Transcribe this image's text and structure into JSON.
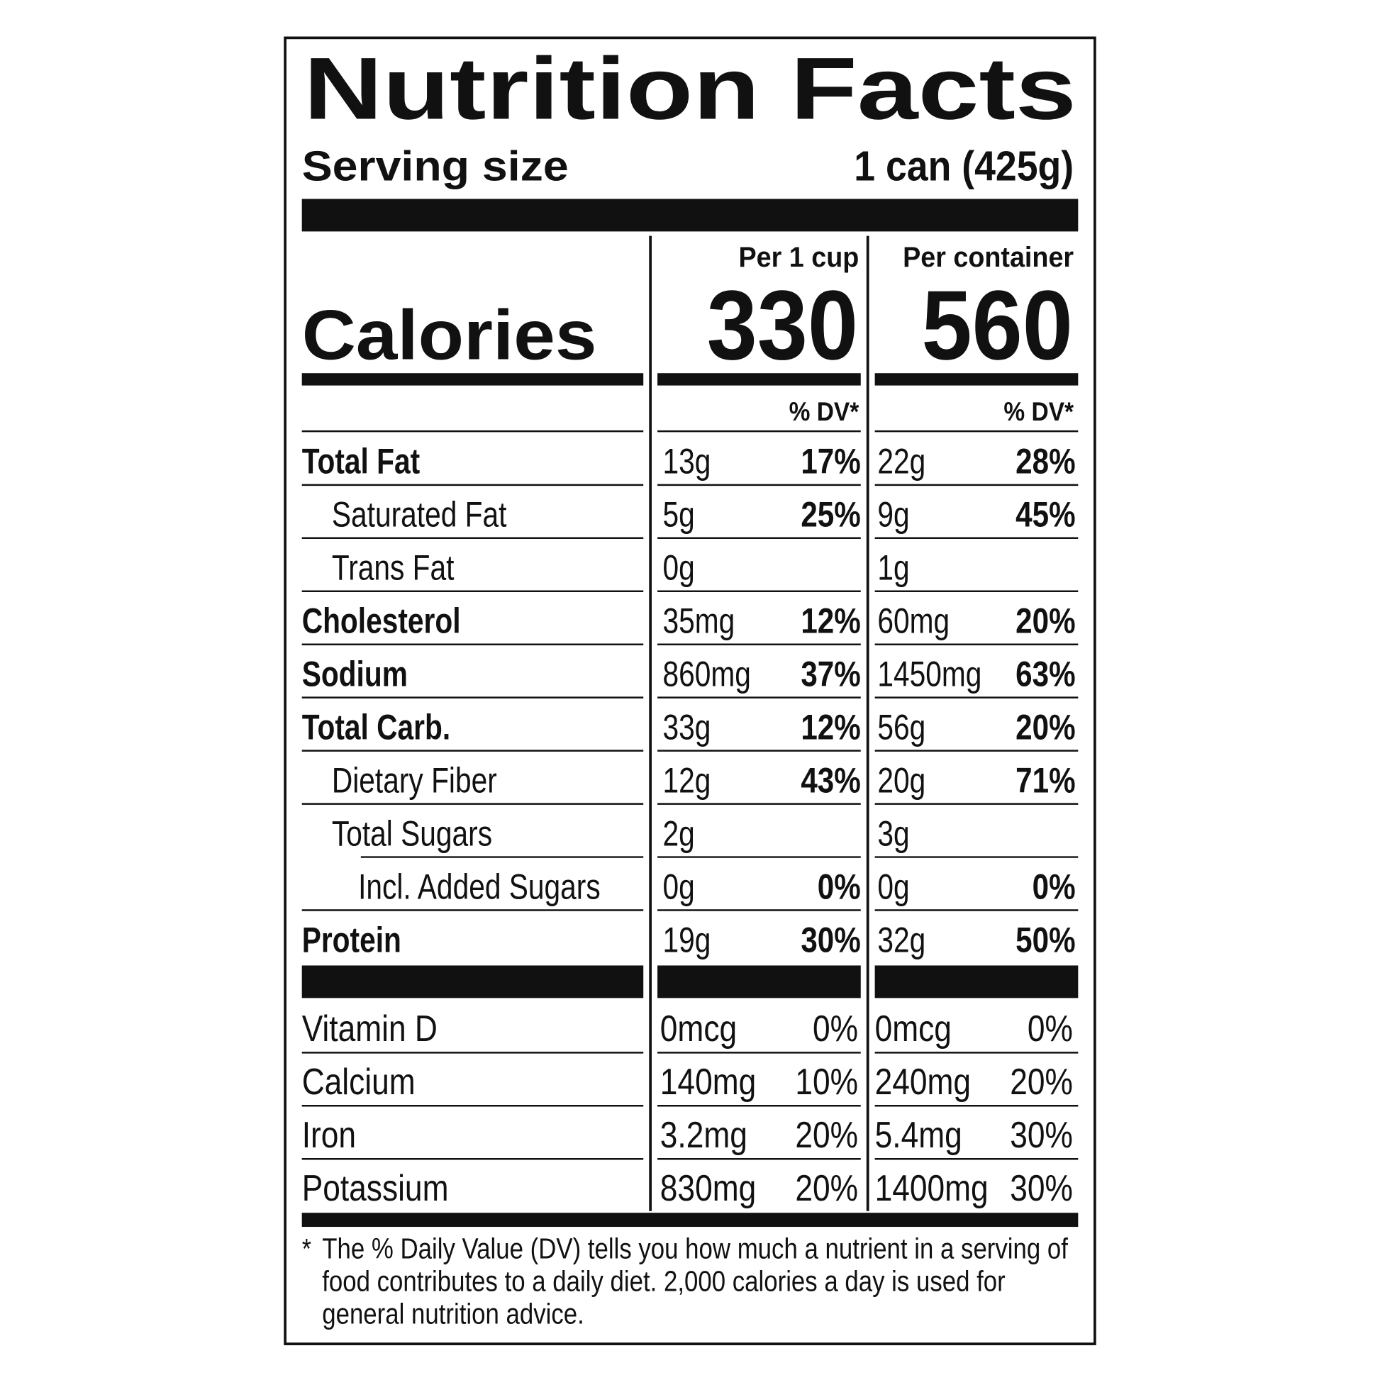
{
  "header": {
    "title": "Nutrition Facts",
    "serving_size_label": "Serving size",
    "serving_size": "1 can (425g)"
  },
  "calories": {
    "label": "Calories",
    "columns": [
      {
        "heading": "Per 1 cup",
        "value": "330",
        "dv_heading": "% DV*"
      },
      {
        "heading": "Per container",
        "value": "560",
        "dv_heading": "% DV*"
      }
    ]
  },
  "table": {
    "rows": [
      {
        "name": "Total Fat",
        "cells": [
          "13g",
          "17%",
          "22g",
          "28%"
        ]
      },
      {
        "name": "Saturated Fat",
        "cells": [
          "5g",
          "25%",
          "9g",
          "45%"
        ]
      },
      {
        "name": "Trans Fat",
        "cells": [
          "0g",
          null,
          "1g",
          null
        ]
      },
      {
        "name": "Cholesterol",
        "cells": [
          "35mg",
          "12%",
          "60mg",
          "20%"
        ]
      },
      {
        "name": "Sodium",
        "cells": [
          "860mg",
          "37%",
          "1450mg",
          "63%"
        ]
      },
      {
        "name": "Total Carb.",
        "cells": [
          "33g",
          "12%",
          "56g",
          "20%"
        ]
      },
      {
        "name": "Dietary Fiber",
        "cells": [
          "12g",
          "43%",
          "20g",
          "71%"
        ]
      },
      {
        "name": "Total Sugars",
        "cells": [
          "2g",
          null,
          "3g",
          null
        ]
      },
      {
        "name": "Incl. Added Sugars",
        "cells": [
          "0g",
          "0%",
          "0g",
          "0%"
        ]
      },
      {
        "name": "Protein",
        "cells": [
          "19g",
          "30%",
          "32g",
          "50%"
        ]
      }
    ]
  },
  "vitamins": {
    "rows": [
      {
        "name": "Vitamin D",
        "cells": [
          "0mcg",
          "0%",
          "0mcg",
          "0%"
        ]
      },
      {
        "name": "Calcium",
        "cells": [
          "140mg",
          "10%",
          "240mg",
          "20%"
        ]
      },
      {
        "name": "Iron",
        "cells": [
          "3.2mg",
          "20%",
          "5.4mg",
          "30%"
        ]
      },
      {
        "name": "Potassium",
        "cells": [
          "830mg",
          "20%",
          "1400mg",
          "30%"
        ]
      }
    ]
  },
  "footnote": {
    "mark": "*",
    "lines": [
      "The % Daily Value (DV) tells you how much a nutrient in a serving of",
      "food contributes to a daily diet. 2,000 calories a day is used for",
      "general nutrition advice."
    ]
  }
}
